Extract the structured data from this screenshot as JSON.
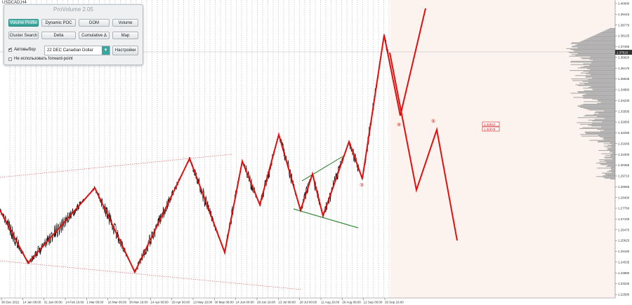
{
  "symbol": "USDCAD,H4",
  "panel": {
    "title": "ProVolume 2.05",
    "buttons": [
      {
        "label": "Volume Profile",
        "active": true
      },
      {
        "label": "Dynamic POC",
        "active": false
      },
      {
        "label": "DOM",
        "active": false
      },
      {
        "label": "Volume",
        "active": false
      },
      {
        "label": "Cluster Search",
        "active": false
      },
      {
        "label": "Delta",
        "active": false
      },
      {
        "label": "Cumulative Δ",
        "active": false
      },
      {
        "label": "Map",
        "active": false
      }
    ],
    "auto_label": "Автовыбор",
    "contract": "22 DEC Canadian Dollar",
    "settings_label": "Настройки",
    "forward_label": "Не использовать forward-point"
  },
  "price_axis": [
    "1.40000",
    "1.39415",
    "1.38770",
    "1.38125",
    "1.37465",
    "1.36820",
    "1.36175",
    "1.35535",
    "1.34880",
    "1.34230",
    "1.33595",
    "1.32950",
    "1.32295",
    "1.31645",
    "1.31000",
    "1.30355",
    "1.29710",
    "1.29065",
    "1.28400",
    "1.27760",
    "1.27105",
    "1.26470",
    "1.25825",
    "1.25180",
    "1.24535",
    "1.23880",
    "1.23225",
    "1.22580"
  ],
  "current_price": "1.37510",
  "levels": [
    "1.32842",
    "1.32678"
  ],
  "time_axis": [
    "30 Dec 2021",
    "14 Jan 08:00",
    "31 Jan 00:00",
    "14 Feb 16:00",
    "1 Mar 08:00",
    "16 Mar 00:00",
    "30 Mar 16:00",
    "14 Apr 08:00",
    "29 Apr 00:00",
    "13 May 16:00",
    "30 May 08:00",
    "14 Jun 00:00",
    "28 Jun 16:00",
    "13 Jul 08:00",
    "28 Jul 00:00",
    "11 Aug 16:00",
    "26 Aug 08:00",
    "12 Sep 00:00",
    "26 Sep 16:00"
  ],
  "wave_labels": [
    "③",
    "④",
    "⑤"
  ],
  "colors": {
    "wave": "#e01010",
    "channel": "#d94b4b",
    "triangle": "#1a7a1a",
    "future_bg": "#fdf3ee",
    "profile": "#a9a9a9",
    "price": "#000000",
    "accent": "#37a89f"
  }
}
